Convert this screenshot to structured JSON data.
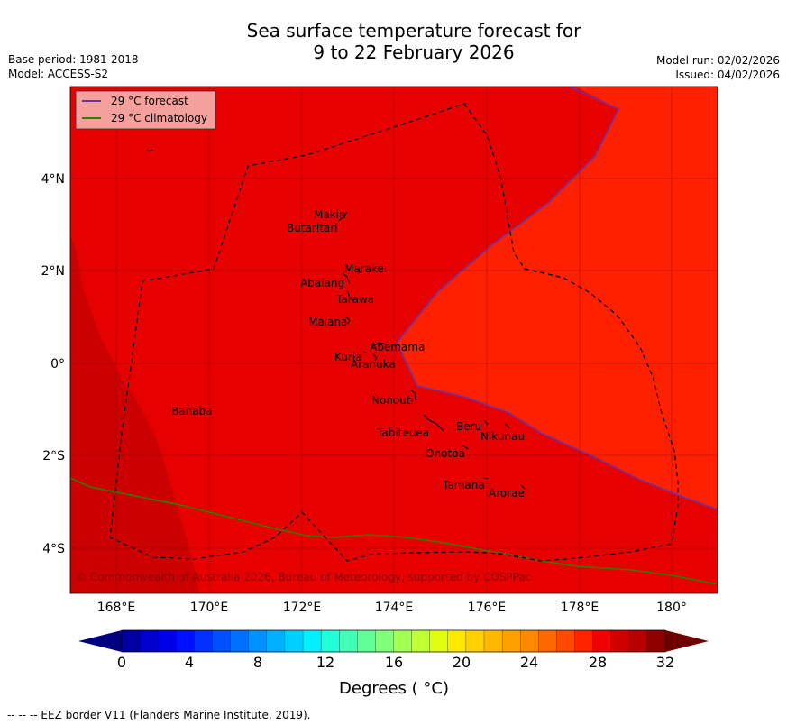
{
  "title": {
    "line1": "Sea surface temperature forecast for",
    "line2": "9 to 22 February 2026"
  },
  "meta_left": {
    "base_period": "Base period: 1981-2018",
    "model": "Model: ACCESS-S2"
  },
  "meta_right": {
    "model_run": "Model run: 02/02/2026",
    "issued": "Issued: 04/02/2026"
  },
  "legend": {
    "forecast_label": "29 °C  forecast",
    "forecast_color": "#7030a0",
    "climatology_label": "29 °C  climatology",
    "climatology_color": "#2e7d00"
  },
  "axes": {
    "lon_ticks": [
      "168°E",
      "170°E",
      "172°E",
      "174°E",
      "176°E",
      "178°E",
      "180°"
    ],
    "lat_ticks": [
      "4°N",
      "2°N",
      "0°",
      "2°S",
      "4°S"
    ]
  },
  "places": [
    "Makin",
    "Butaritari",
    "Marakei",
    "Abaiang",
    "Tarawa",
    "Maiana",
    "Abemama",
    "Kuria",
    "Aranuka",
    "Banaba",
    "Nonouti",
    "Beru",
    "Nikunau",
    "Tabiteuea",
    "Onotoa",
    "Tamana",
    "Arorae"
  ],
  "copyright": "© Commonwealth of Australia 2026, Bureau of Meteorology, supported by COSPPac",
  "colorbar": {
    "ticks": [
      "0",
      "4",
      "8",
      "12",
      "16",
      "20",
      "24",
      "28",
      "32"
    ],
    "label": "Degrees ( °C)",
    "colors": [
      "#0000a0",
      "#0000cc",
      "#0000e6",
      "#0010ff",
      "#0030ff",
      "#0050ff",
      "#0070ff",
      "#0090ff",
      "#00b0ff",
      "#00d0ff",
      "#00f0ff",
      "#20ffd8",
      "#40ffb8",
      "#60ff98",
      "#80ff78",
      "#a0ff50",
      "#c0ff30",
      "#e0ff10",
      "#ffe800",
      "#ffd000",
      "#ffb800",
      "#ffa000",
      "#ff8800",
      "#ff6800",
      "#ff4800",
      "#ff2400",
      "#f00000",
      "#d00000",
      "#b80000",
      "#900000"
    ],
    "under_color": "#000080",
    "over_color": "#700000"
  },
  "map_colors": {
    "c28_29": "#e60000",
    "c29_30": "#ff2000",
    "c27_28": "#cc0000"
  },
  "footer": "--  --  -- EEZ border V11 (Flanders Marine Institute, 2019)."
}
